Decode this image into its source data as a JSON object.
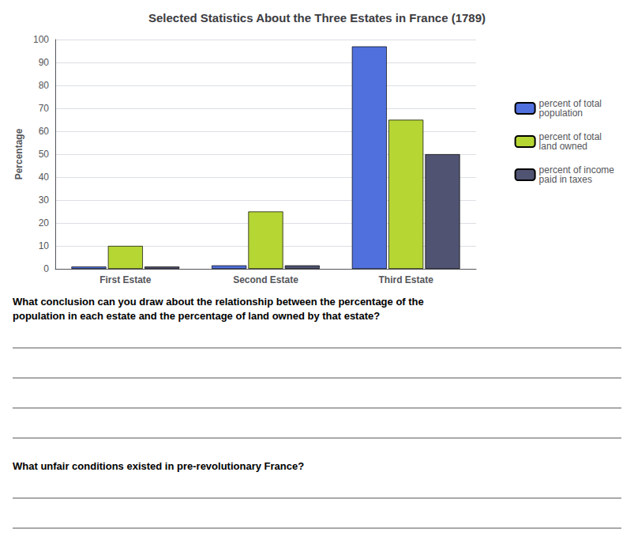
{
  "chart_data": {
    "type": "bar",
    "title": "Selected Statistics About the Three Estates in France (1789)",
    "ylabel": "Percentage",
    "categories": [
      "First Estate",
      "Second Estate",
      "Third Estate"
    ],
    "series": [
      {
        "name": "percent of total\npopulation",
        "values": [
          1,
          1.5,
          97
        ]
      },
      {
        "name": "percent of total\nland owned",
        "values": [
          10,
          25,
          65
        ]
      },
      {
        "name": "percent of income\npaid in taxes",
        "values": [
          1,
          1.5,
          50
        ]
      }
    ],
    "ylim": [
      0,
      100
    ],
    "yticks": [
      0,
      10,
      20,
      30,
      40,
      50,
      60,
      70,
      80,
      90,
      100
    ],
    "grid": true,
    "legend": "right",
    "annotations": [
      "What conclusion can you draw about the relationship between the percentage of the\npopulation in each estate and the percentage of land owned by that estate?",
      "What unfair conditions existed in pre-revolutionary France?"
    ]
  }
}
